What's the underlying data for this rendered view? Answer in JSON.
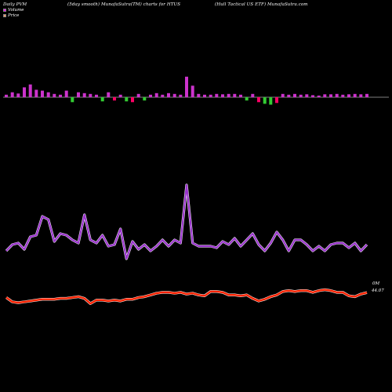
{
  "header": {
    "left": "Daily PVM",
    "center": "(5day smooth) MunafaSutra(TM) charts for HTUS",
    "right": "(Hull Tactical US ETF) MunafaSutra.com"
  },
  "legend": {
    "volume_label": "Volume",
    "price_label": "Price",
    "volume_color": "#ff00ff",
    "price_color": "#ff9966"
  },
  "labels": {
    "volume_value": "0M",
    "price_value": "44.07"
  },
  "colors": {
    "background": "#000000",
    "bar_up": "#cc33cc",
    "bar_down": "#33cc33",
    "bar_red": "#ff0066",
    "volume_line": "#9933cc",
    "price_line": "#ff2200",
    "baseline": "#aaaaaa"
  },
  "chart_data": {
    "type": "line",
    "title": "(5day smooth) MunafaSutra(TM) charts for HTUS",
    "series": [
      {
        "name": "Volume",
        "values": [
          0.3,
          0.34,
          0.35,
          0.31,
          0.39,
          0.4,
          0.52,
          0.5,
          0.36,
          0.41,
          0.4,
          0.37,
          0.35,
          0.53,
          0.37,
          0.35,
          0.4,
          0.33,
          0.34,
          0.44,
          0.25,
          0.36,
          0.31,
          0.34,
          0.3,
          0.33,
          0.37,
          0.33,
          0.37,
          0.35,
          0.72,
          0.35,
          0.33,
          0.33,
          0.33,
          0.32,
          0.36,
          0.34,
          0.38,
          0.33,
          0.37,
          0.41,
          0.34,
          0.3,
          0.35,
          0.42,
          0.37,
          0.3,
          0.37,
          0.37,
          0.34,
          0.3,
          0.33,
          0.3,
          0.34,
          0.35,
          0.35,
          0.32,
          0.35,
          0.3,
          0.34
        ]
      },
      {
        "name": "Price",
        "values": [
          43.5,
          43.0,
          42.9,
          43.0,
          43.1,
          43.2,
          43.3,
          43.3,
          43.3,
          43.4,
          43.4,
          43.5,
          43.6,
          43.4,
          42.8,
          43.2,
          43.2,
          43.1,
          43.2,
          43.1,
          43.3,
          43.3,
          43.5,
          43.6,
          43.8,
          44.0,
          44.1,
          44.1,
          44.0,
          44.1,
          43.9,
          44.0,
          43.8,
          43.7,
          44.2,
          44.2,
          44.1,
          43.8,
          43.8,
          43.7,
          43.8,
          43.4,
          43.1,
          43.3,
          43.6,
          43.8,
          44.2,
          44.3,
          44.2,
          44.3,
          44.3,
          44.1,
          44.3,
          44.4,
          44.3,
          44.1,
          44.1,
          43.7,
          43.6,
          43.9,
          44.07
        ]
      }
    ],
    "bars": {
      "name": "PVM",
      "values": [
        0.3,
        0.6,
        0.45,
        1.2,
        1.55,
        0.9,
        0.8,
        0.6,
        0.4,
        0.3,
        0.8,
        -0.6,
        0.6,
        0.5,
        0.4,
        0.3,
        -0.5,
        0.6,
        -0.4,
        0.3,
        -0.5,
        -0.6,
        0.4,
        -0.4,
        0.3,
        0.5,
        0.3,
        0.5,
        0.4,
        0.3,
        2.5,
        1.4,
        0.4,
        0.3,
        0.3,
        0.4,
        0.35,
        0.4,
        0.4,
        0.3,
        -0.4,
        0.4,
        -0.6,
        -0.8,
        -0.9,
        -0.7,
        0.4,
        0.3,
        0.4,
        0.3,
        0.35,
        0.25,
        0.2,
        0.35,
        0.35,
        0.4,
        0.3,
        0.35,
        0.4,
        0.35,
        0.4
      ],
      "up_color_indices": "red bars at high negative/price-down days"
    },
    "ylim_volume": [
      0,
      1
    ],
    "ylim_price": [
      40,
      46
    ],
    "grid": false,
    "legend_position": "top-left"
  }
}
